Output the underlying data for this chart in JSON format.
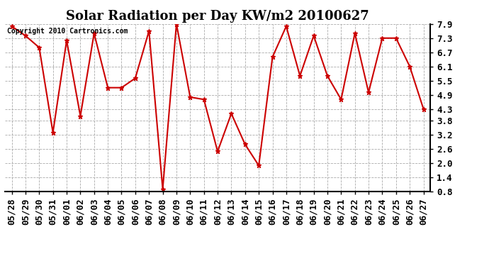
{
  "title": "Solar Radiation per Day KW/m2 20100627",
  "copyright": "Copyright 2010 Cartronics.com",
  "dates": [
    "05/28",
    "05/29",
    "05/30",
    "05/31",
    "06/01",
    "06/02",
    "06/03",
    "06/04",
    "06/05",
    "06/06",
    "06/07",
    "06/08",
    "06/09",
    "06/10",
    "06/11",
    "06/12",
    "06/13",
    "06/14",
    "06/15",
    "06/16",
    "06/17",
    "06/18",
    "06/19",
    "06/20",
    "06/21",
    "06/22",
    "06/23",
    "06/24",
    "06/25",
    "06/26",
    "06/27"
  ],
  "values": [
    7.8,
    7.4,
    6.9,
    3.3,
    7.2,
    4.0,
    7.5,
    5.2,
    5.2,
    5.6,
    7.6,
    0.9,
    7.9,
    4.8,
    4.7,
    2.5,
    4.1,
    2.8,
    1.9,
    6.5,
    7.8,
    5.7,
    7.4,
    5.7,
    4.7,
    7.5,
    5.0,
    7.3,
    7.3,
    6.1,
    4.3
  ],
  "line_color": "#cc0000",
  "marker": "*",
  "marker_color": "#cc0000",
  "marker_size": 5,
  "bg_color": "#ffffff",
  "grid_color": "#aaaaaa",
  "ylim": [
    0.8,
    7.9
  ],
  "yticks": [
    0.8,
    1.4,
    2.0,
    2.6,
    3.2,
    3.8,
    4.3,
    4.9,
    5.5,
    6.1,
    6.7,
    7.3,
    7.9
  ],
  "title_fontsize": 13,
  "copyright_fontsize": 7,
  "tick_fontsize": 9
}
